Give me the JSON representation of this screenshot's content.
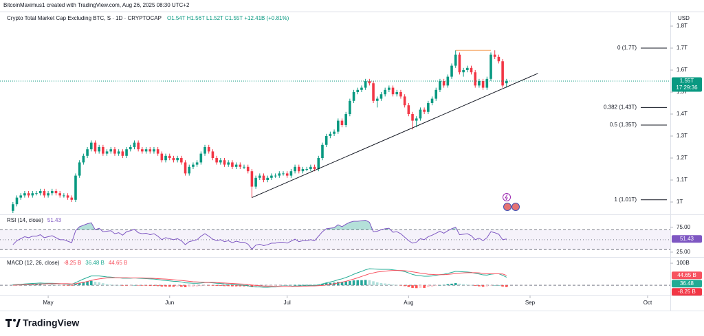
{
  "header": {
    "credit": "BitcoinMaximus1 created with TradingView.com, Aug 26, 2025 08:30 UTC+2",
    "symbol": "Crypto Total Market Cap Excluding BTC, S · 1D · CRYPTOCAP",
    "quote": "O1.54T H1.56T L1.52T C1.55T +12.41B (+0.81%)",
    "currency": "USD"
  },
  "footer": {
    "brand": "TradingView"
  },
  "chart_data": [
    {
      "type": "candlestick",
      "open": [
        0.96,
        0.99,
        1.02,
        1.03,
        1.04,
        1.03,
        1.04,
        1.04,
        1.05,
        1.03,
        1.04,
        1.05,
        1.04,
        1.03,
        1.03,
        1.02,
        1.01,
        1.12,
        1.18,
        1.21,
        1.24,
        1.27,
        1.23,
        1.25,
        1.22,
        1.23,
        1.24,
        1.22,
        1.23,
        1.21,
        1.24,
        1.25,
        1.27,
        1.24,
        1.23,
        1.24,
        1.23,
        1.24,
        1.22,
        1.19,
        1.21,
        1.2,
        1.19,
        1.2,
        1.18,
        1.13,
        1.16,
        1.17,
        1.18,
        1.22,
        1.25,
        1.23,
        1.2,
        1.18,
        1.19,
        1.17,
        1.18,
        1.16,
        1.17,
        1.16,
        1.16,
        1.14,
        1.07,
        1.11,
        1.12,
        1.1,
        1.11,
        1.12,
        1.12,
        1.13,
        1.13,
        1.12,
        1.14,
        1.16,
        1.14,
        1.15,
        1.15,
        1.16,
        1.15,
        1.2,
        1.26,
        1.3,
        1.31,
        1.32,
        1.37,
        1.35,
        1.4,
        1.46,
        1.5,
        1.51,
        1.52,
        1.55,
        1.54,
        1.46,
        1.47,
        1.49,
        1.51,
        1.52,
        1.49,
        1.5,
        1.48,
        1.44,
        1.4,
        1.37,
        1.38,
        1.42,
        1.41,
        1.45,
        1.47,
        1.51,
        1.55,
        1.53,
        1.57,
        1.62,
        1.67,
        1.59,
        1.6,
        1.61,
        1.59,
        1.53,
        1.55,
        1.52,
        1.56,
        1.67,
        1.66,
        1.64,
        1.54
      ],
      "high": [
        1.0,
        1.03,
        1.04,
        1.05,
        1.05,
        1.05,
        1.05,
        1.06,
        1.06,
        1.05,
        1.06,
        1.06,
        1.05,
        1.04,
        1.04,
        1.03,
        1.13,
        1.19,
        1.22,
        1.25,
        1.28,
        1.28,
        1.26,
        1.26,
        1.24,
        1.25,
        1.25,
        1.24,
        1.24,
        1.25,
        1.26,
        1.28,
        1.28,
        1.25,
        1.25,
        1.25,
        1.25,
        1.25,
        1.23,
        1.22,
        1.22,
        1.21,
        1.21,
        1.21,
        1.19,
        1.17,
        1.18,
        1.19,
        1.23,
        1.26,
        1.26,
        1.24,
        1.21,
        1.2,
        1.2,
        1.19,
        1.19,
        1.18,
        1.18,
        1.17,
        1.17,
        1.15,
        1.12,
        1.13,
        1.13,
        1.12,
        1.13,
        1.13,
        1.14,
        1.14,
        1.14,
        1.15,
        1.17,
        1.17,
        1.16,
        1.16,
        1.17,
        1.17,
        1.21,
        1.27,
        1.31,
        1.32,
        1.33,
        1.38,
        1.38,
        1.41,
        1.47,
        1.51,
        1.52,
        1.53,
        1.56,
        1.56,
        1.55,
        1.48,
        1.5,
        1.52,
        1.53,
        1.53,
        1.51,
        1.51,
        1.49,
        1.45,
        1.41,
        1.39,
        1.43,
        1.43,
        1.46,
        1.48,
        1.52,
        1.56,
        1.56,
        1.58,
        1.63,
        1.69,
        1.68,
        1.61,
        1.62,
        1.62,
        1.6,
        1.56,
        1.56,
        1.57,
        1.68,
        1.69,
        1.67,
        1.65,
        1.56
      ],
      "low": [
        0.95,
        0.98,
        1.01,
        1.02,
        1.02,
        1.02,
        1.03,
        1.03,
        1.02,
        1.02,
        1.03,
        1.03,
        1.02,
        1.02,
        1.01,
        1.0,
        1.0,
        1.11,
        1.17,
        1.2,
        1.23,
        1.22,
        1.22,
        1.21,
        1.21,
        1.22,
        1.21,
        1.21,
        1.2,
        1.2,
        1.23,
        1.24,
        1.23,
        1.22,
        1.22,
        1.22,
        1.22,
        1.21,
        1.18,
        1.18,
        1.19,
        1.18,
        1.18,
        1.17,
        1.12,
        1.12,
        1.15,
        1.16,
        1.17,
        1.21,
        1.22,
        1.19,
        1.17,
        1.17,
        1.16,
        1.16,
        1.15,
        1.15,
        1.15,
        1.15,
        1.13,
        1.02,
        1.06,
        1.1,
        1.09,
        1.09,
        1.1,
        1.11,
        1.11,
        1.12,
        1.11,
        1.11,
        1.13,
        1.13,
        1.13,
        1.14,
        1.14,
        1.14,
        1.14,
        1.19,
        1.25,
        1.29,
        1.3,
        1.31,
        1.34,
        1.34,
        1.39,
        1.45,
        1.49,
        1.5,
        1.51,
        1.53,
        1.45,
        1.43,
        1.46,
        1.48,
        1.5,
        1.48,
        1.48,
        1.47,
        1.43,
        1.39,
        1.33,
        1.34,
        1.37,
        1.4,
        1.4,
        1.44,
        1.46,
        1.5,
        1.52,
        1.52,
        1.56,
        1.61,
        1.58,
        1.57,
        1.59,
        1.58,
        1.52,
        1.52,
        1.51,
        1.51,
        1.55,
        1.65,
        1.63,
        1.52,
        1.52
      ],
      "close": [
        0.99,
        1.02,
        1.03,
        1.04,
        1.03,
        1.04,
        1.04,
        1.05,
        1.03,
        1.04,
        1.05,
        1.04,
        1.03,
        1.03,
        1.02,
        1.01,
        1.12,
        1.18,
        1.21,
        1.24,
        1.27,
        1.23,
        1.25,
        1.22,
        1.23,
        1.24,
        1.22,
        1.23,
        1.21,
        1.24,
        1.25,
        1.27,
        1.24,
        1.23,
        1.24,
        1.23,
        1.24,
        1.22,
        1.19,
        1.21,
        1.2,
        1.19,
        1.2,
        1.18,
        1.13,
        1.16,
        1.17,
        1.18,
        1.22,
        1.25,
        1.23,
        1.2,
        1.18,
        1.19,
        1.17,
        1.18,
        1.16,
        1.17,
        1.16,
        1.16,
        1.14,
        1.07,
        1.11,
        1.12,
        1.1,
        1.11,
        1.12,
        1.12,
        1.13,
        1.13,
        1.12,
        1.14,
        1.16,
        1.14,
        1.15,
        1.15,
        1.16,
        1.15,
        1.2,
        1.26,
        1.3,
        1.31,
        1.32,
        1.37,
        1.35,
        1.4,
        1.46,
        1.5,
        1.51,
        1.52,
        1.55,
        1.54,
        1.46,
        1.47,
        1.49,
        1.51,
        1.52,
        1.49,
        1.5,
        1.48,
        1.44,
        1.4,
        1.37,
        1.38,
        1.42,
        1.41,
        1.45,
        1.47,
        1.51,
        1.55,
        1.53,
        1.57,
        1.62,
        1.67,
        1.59,
        1.6,
        1.61,
        1.59,
        1.53,
        1.55,
        1.52,
        1.56,
        1.67,
        1.66,
        1.64,
        1.53,
        1.55
      ],
      "up_color": "#089981",
      "down_color": "#f23645",
      "xlim": [
        -3.3,
        167.8
      ],
      "xticks": [
        {
          "value": 9,
          "label": "May"
        },
        {
          "value": 40,
          "label": "Jun"
        },
        {
          "value": 70,
          "label": "Jul"
        },
        {
          "value": 101,
          "label": "Aug"
        },
        {
          "value": 132,
          "label": "Sep"
        },
        {
          "value": 162,
          "label": "Oct"
        }
      ],
      "ylim": [
        0.95,
        1.825
      ],
      "yticks": [
        {
          "value": 1,
          "label": "1T"
        },
        {
          "value": 1.1,
          "label": "1.1T"
        },
        {
          "value": 1.2,
          "label": "1.2T"
        },
        {
          "value": 1.3,
          "label": "1.3T"
        },
        {
          "value": 1.4,
          "label": "1.4T"
        },
        {
          "value": 1.5,
          "label": "1.5T"
        },
        {
          "value": 1.6,
          "label": "1.6T"
        },
        {
          "value": 1.7,
          "label": "1.7T"
        },
        {
          "value": 1.8,
          "label": "1.8T"
        }
      ],
      "last_price": {
        "value": 1.55,
        "label": "1.55T"
      },
      "countdown": "17:29:36",
      "fib_levels": [
        {
          "value": 1.7,
          "label": "0 (1.7T)"
        },
        {
          "value": 1.43,
          "label": "0.382 (1.43T)"
        },
        {
          "value": 1.35,
          "label": "0.5 (1.35T)"
        },
        {
          "value": 1.01,
          "label": "1 (1.01T)"
        }
      ],
      "trendline": {
        "x": [
          61,
          134
        ],
        "y": [
          1.02,
          1.585
        ],
        "color": "#131722"
      },
      "resistance": {
        "x": [
          113,
          122
        ],
        "y": [
          1.69,
          1.69
        ],
        "color": "#f5a25d"
      }
    },
    {
      "type": "line",
      "title": "RSI (14, close)",
      "series": [
        {
          "color": "#7e57c2",
          "values": [
            40,
            48,
            52,
            56,
            54,
            57,
            57,
            60,
            54,
            56,
            58,
            54,
            50,
            50,
            47,
            44,
            68,
            76,
            79,
            82,
            84,
            70,
            73,
            66,
            67,
            68,
            62,
            64,
            59,
            66,
            68,
            71,
            64,
            62,
            63,
            60,
            62,
            57,
            50,
            54,
            52,
            50,
            52,
            48,
            40,
            46,
            48,
            50,
            57,
            62,
            57,
            51,
            48,
            50,
            46,
            48,
            44,
            47,
            45,
            45,
            41,
            31,
            39,
            41,
            38,
            40,
            43,
            43,
            45,
            45,
            43,
            47,
            51,
            46,
            48,
            48,
            50,
            48,
            57,
            66,
            72,
            73,
            74,
            80,
            76,
            81,
            85,
            87,
            87,
            88,
            89,
            85,
            66,
            67,
            70,
            72,
            73,
            65,
            66,
            62,
            55,
            48,
            43,
            45,
            52,
            50,
            56,
            59,
            63,
            67,
            63,
            68,
            72,
            75,
            60,
            61,
            62,
            58,
            50,
            53,
            48,
            54,
            66,
            64,
            61,
            50,
            51.43
          ]
        }
      ],
      "bands": [
        70,
        50,
        30
      ],
      "ylim": [
        18,
        95.3
      ],
      "yticks": [
        {
          "value": 75,
          "label": "75.00"
        },
        {
          "value": 25,
          "label": "25.00"
        }
      ]
    },
    {
      "type": "macd",
      "title": "MACD (12, 26, close)",
      "series": [
        {
          "kind": "histogram",
          "color": "#f23645",
          "colors": [
            "#26a69a",
            "#b2dfdb",
            "#ffcdd2",
            "#ff5252"
          ],
          "header_label": "-8.25 B",
          "axis_label": "-8.25 B",
          "values": [
            2,
            2,
            3,
            4,
            4,
            4,
            4,
            4,
            3,
            2,
            2,
            1,
            0,
            -1,
            -2,
            -2,
            5,
            10,
            15,
            18,
            20,
            16,
            13,
            9,
            5,
            3,
            1,
            0,
            -2,
            -2,
            -1,
            0,
            -1,
            -2,
            -2,
            -3,
            -3,
            -4,
            -6,
            -6,
            -7,
            -7,
            -6,
            -7,
            -9,
            -8,
            -7,
            -6,
            -4,
            -1,
            -1,
            -2,
            -3,
            -3,
            -4,
            -4,
            -5,
            -5,
            -5,
            -5,
            -5,
            -8,
            -7,
            -6,
            -5,
            -4,
            -3,
            -2,
            -1,
            0,
            0,
            1,
            2,
            2,
            2,
            2,
            2,
            2,
            3,
            7,
            10,
            11,
            12,
            15,
            15,
            17,
            19,
            22,
            23,
            23,
            24,
            23,
            18,
            13,
            10,
            8,
            6,
            3,
            1,
            -1,
            -4,
            -8,
            -12,
            -13,
            -12,
            -12,
            -9,
            -7,
            -3,
            0,
            2,
            5,
            7,
            10,
            7,
            5,
            3,
            1,
            -3,
            -5,
            -7,
            -6,
            -2,
            0,
            0,
            -6,
            -8.25
          ]
        },
        {
          "kind": "line",
          "color": "#22ab94",
          "header_label": "36.48 B",
          "axis_label": "36.48",
          "values": [
            2,
            3,
            4,
            6,
            7,
            8,
            9,
            10,
            9,
            9,
            9,
            8,
            7,
            6,
            5,
            4,
            12,
            20,
            28,
            35,
            42,
            42,
            42,
            40,
            38,
            37,
            35,
            34,
            32,
            32,
            32,
            33,
            32,
            31,
            30,
            29,
            28,
            26,
            23,
            22,
            20,
            18,
            17,
            15,
            11,
            10,
            9,
            9,
            10,
            12,
            12,
            11,
            9,
            8,
            6,
            5,
            3,
            2,
            1,
            0,
            -2,
            -7,
            -8,
            -8,
            -9,
            -9,
            -8,
            -8,
            -7,
            -6,
            -6,
            -5,
            -3,
            -3,
            -2,
            -2,
            -1,
            -1,
            1,
            6,
            11,
            15,
            19,
            25,
            29,
            35,
            42,
            50,
            57,
            63,
            70,
            75,
            74,
            73,
            72,
            72,
            72,
            70,
            68,
            66,
            62,
            56,
            49,
            45,
            43,
            41,
            41,
            42,
            45,
            48,
            50,
            54,
            58,
            63,
            62,
            61,
            60,
            58,
            54,
            51,
            47,
            46,
            50,
            52,
            52,
            45,
            36.48
          ]
        },
        {
          "kind": "line",
          "color": "#f7525f",
          "header_label": "44.65 B",
          "axis_label": "44.65 B",
          "values": [
            0,
            1,
            1,
            2,
            3,
            4,
            5,
            6,
            6,
            7,
            7,
            7,
            7,
            7,
            7,
            6,
            7,
            10,
            13,
            17,
            22,
            26,
            29,
            31,
            33,
            34,
            34,
            34,
            34,
            34,
            33,
            33,
            33,
            33,
            32,
            32,
            31,
            30,
            29,
            28,
            27,
            25,
            23,
            22,
            20,
            18,
            16,
            15,
            14,
            13,
            13,
            13,
            12,
            11,
            10,
            9,
            8,
            7,
            6,
            5,
            3,
            1,
            -1,
            -2,
            -4,
            -5,
            -5,
            -6,
            -6,
            -6,
            -6,
            -6,
            -5,
            -5,
            -4,
            -4,
            -3,
            -3,
            -2,
            -1,
            1,
            4,
            7,
            10,
            14,
            18,
            23,
            28,
            34,
            40,
            46,
            52,
            56,
            60,
            62,
            64,
            66,
            67,
            67,
            67,
            66,
            64,
            61,
            58,
            55,
            53,
            50,
            49,
            48,
            48,
            48,
            49,
            51,
            53,
            55,
            56,
            57,
            57,
            57,
            56,
            54,
            52,
            52,
            52,
            52,
            51,
            44.65
          ]
        }
      ],
      "ylim": [
        -34,
        119
      ],
      "yticks": [
        {
          "value": 100,
          "label": "100B"
        }
      ]
    }
  ]
}
